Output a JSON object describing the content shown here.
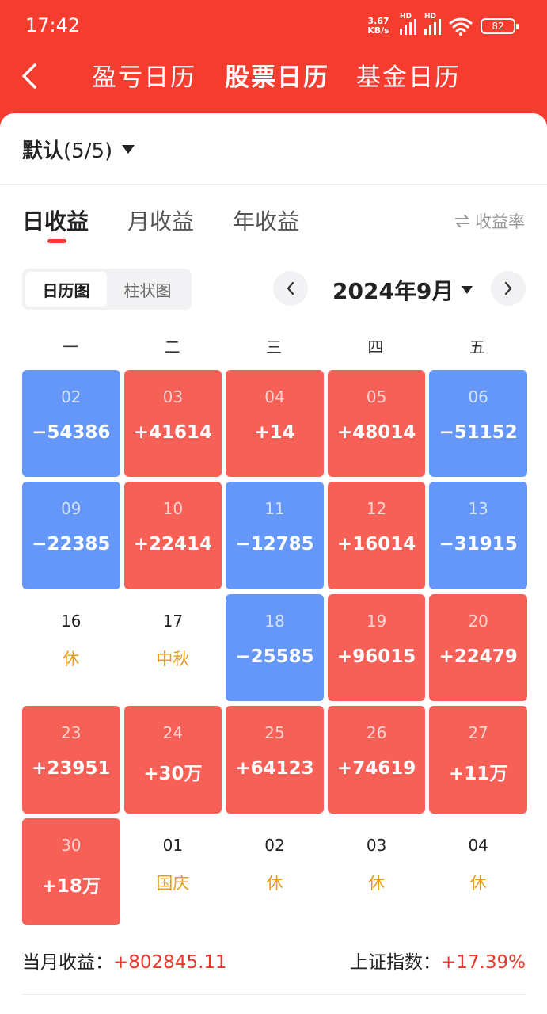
{
  "status": {
    "time": "17:42",
    "net_speed_top": "3.67",
    "net_speed_bottom": "KB/s",
    "hd": "HD",
    "battery": "82"
  },
  "top_tabs": [
    "盈亏日历",
    "股票日历",
    "基金日历"
  ],
  "account": {
    "name": "默认",
    "count": "(5/5)"
  },
  "sub_tabs": [
    "日收益",
    "月收益",
    "年收益"
  ],
  "rate_toggle": "收益率",
  "view_toggle": [
    "日历图",
    "柱状图"
  ],
  "month": "2024年9月",
  "weekdays": [
    "一",
    "二",
    "三",
    "四",
    "五"
  ],
  "calendar": [
    {
      "date": "02",
      "value": "−54386",
      "type": "blue"
    },
    {
      "date": "03",
      "value": "+41614",
      "type": "red"
    },
    {
      "date": "04",
      "value": "+14",
      "type": "red"
    },
    {
      "date": "05",
      "value": "+48014",
      "type": "red"
    },
    {
      "date": "06",
      "value": "−51152",
      "type": "blue"
    },
    {
      "date": "09",
      "value": "−22385",
      "type": "blue"
    },
    {
      "date": "10",
      "value": "+22414",
      "type": "red"
    },
    {
      "date": "11",
      "value": "−12785",
      "type": "blue"
    },
    {
      "date": "12",
      "value": "+16014",
      "type": "red"
    },
    {
      "date": "13",
      "value": "−31915",
      "type": "blue"
    },
    {
      "date": "16",
      "holiday": "休",
      "type": "plain"
    },
    {
      "date": "17",
      "holiday": "中秋",
      "type": "plain"
    },
    {
      "date": "18",
      "value": "−25585",
      "type": "blue"
    },
    {
      "date": "19",
      "value": "+96015",
      "type": "red"
    },
    {
      "date": "20",
      "value": "+22479",
      "type": "red"
    },
    {
      "date": "23",
      "value": "+23951",
      "type": "red"
    },
    {
      "date": "24",
      "value": "+30万",
      "type": "red"
    },
    {
      "date": "25",
      "value": "+64123",
      "type": "red"
    },
    {
      "date": "26",
      "value": "+74619",
      "type": "red"
    },
    {
      "date": "27",
      "value": "+11万",
      "type": "red"
    },
    {
      "date": "30",
      "value": "+18万",
      "type": "red"
    },
    {
      "date": "01",
      "holiday": "国庆",
      "type": "plain"
    },
    {
      "date": "02",
      "holiday": "休",
      "type": "plain"
    },
    {
      "date": "03",
      "holiday": "休",
      "type": "plain"
    },
    {
      "date": "04",
      "holiday": "休",
      "type": "plain"
    }
  ],
  "summary": {
    "month_label": "当月收益：",
    "month_value": "+802845.11",
    "index_label": "上证指数：",
    "index_value": "+17.39%"
  },
  "colors": {
    "header_red": "#f43d2f",
    "gain_red": "#f76057",
    "loss_blue": "#6497f7",
    "holiday_orange": "#e89c1b"
  },
  "icons": [
    "back-arrow-icon",
    "dropdown-triangle-icon",
    "swap-icon",
    "chevron-left-icon",
    "chevron-right-icon",
    "signal-icon",
    "wifi-icon",
    "battery-icon"
  ]
}
